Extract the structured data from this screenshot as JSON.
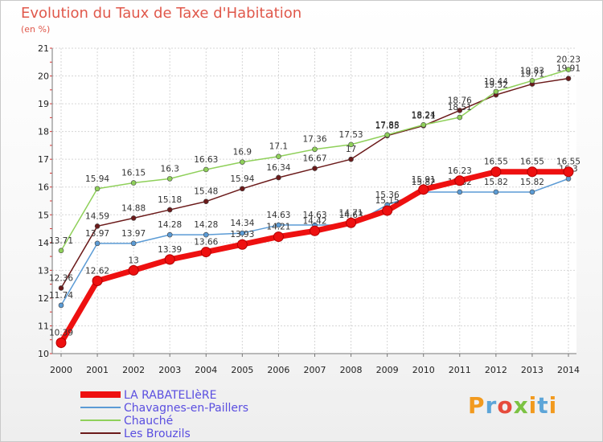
{
  "title": "Evolution du Taux de Taxe d'Habitation",
  "subtitle": "(en %)",
  "logo_text": "Proxiti",
  "chart_data": {
    "type": "line",
    "title": "Evolution du Taux de Taxe d'Habitation",
    "ylabel": "(en %)",
    "ylim": [
      10,
      21
    ],
    "yticks": [
      "10",
      "11",
      "12",
      "13",
      "14",
      "15",
      "16",
      "17",
      "18",
      "19",
      "20",
      "21"
    ],
    "x": [
      "2000",
      "2001",
      "2002",
      "2003",
      "2004",
      "2005",
      "2006",
      "2007",
      "2008",
      "2009",
      "2010",
      "2011",
      "2012",
      "2013",
      "2014"
    ],
    "grid": true,
    "legend_position": "bottom",
    "series": [
      {
        "name": "Les Brouzils",
        "color": "#6b1a1a",
        "values": [
          12.36,
          14.59,
          14.88,
          15.18,
          15.48,
          15.94,
          16.34,
          16.67,
          17.0,
          17.85,
          18.21,
          18.76,
          19.32,
          19.71,
          19.91
        ],
        "labels": [
          "12.36",
          "14.59",
          "14.88",
          "15.18",
          "15.48",
          "15.94",
          "16.34",
          "16.67",
          "17",
          "17.85",
          "18.21",
          "18.76",
          "19.32",
          "19.71",
          "19.91"
        ]
      },
      {
        "name": "Chauché",
        "color": "#8fd05a",
        "values": [
          13.71,
          15.94,
          16.15,
          16.3,
          16.63,
          16.9,
          17.1,
          17.36,
          17.53,
          17.88,
          18.24,
          18.51,
          19.44,
          19.83,
          20.23
        ],
        "labels": [
          "13.71",
          "15.94",
          "16.15",
          "16.3",
          "16.63",
          "16.9",
          "17.1",
          "17.36",
          "17.53",
          "17.88",
          "18.24",
          "18.51",
          "19.44",
          "19.83",
          "20.23"
        ]
      },
      {
        "name": "Chavagnes-en-Paillers",
        "color": "#5b9bd5",
        "values": [
          11.74,
          13.97,
          13.97,
          14.28,
          14.28,
          14.34,
          14.63,
          14.63,
          14.63,
          15.36,
          15.82,
          15.82,
          15.82,
          15.82,
          16.3
        ],
        "labels": [
          "11.74",
          "13.97",
          "13.97",
          "14.28",
          "14.28",
          "14.34",
          "14.63",
          "14.63",
          "14.63",
          "15.36",
          "15.82",
          "15.82",
          "15.82",
          "15.82",
          "16.3"
        ]
      },
      {
        "name": "LA RABATELIèRE",
        "color": "#ee1010",
        "values": [
          10.39,
          12.62,
          13.0,
          13.39,
          13.66,
          13.93,
          14.21,
          14.42,
          14.71,
          15.15,
          15.91,
          16.23,
          16.55,
          16.55,
          16.55
        ],
        "labels": [
          "10.39",
          "12.62",
          "13",
          "13.39",
          "13.66",
          "13.93",
          "14.21",
          "14.42",
          "14.71",
          "15.15",
          "15.91",
          "16.23",
          "16.55",
          "16.55",
          "16.55"
        ]
      }
    ],
    "legend": [
      "LA RABATELIèRE",
      "Chavagnes-en-Paillers",
      "Chauché",
      "Les Brouzils"
    ]
  }
}
